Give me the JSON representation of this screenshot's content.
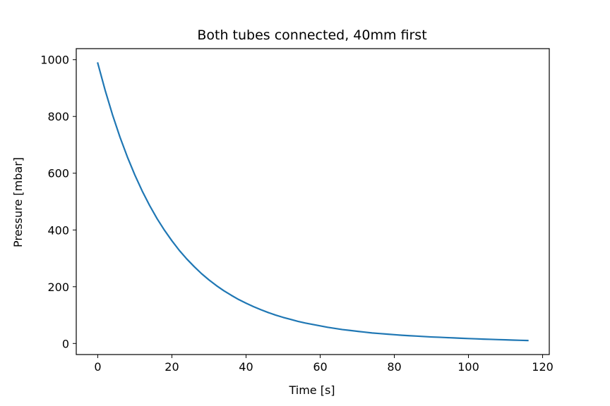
{
  "chart_data": {
    "type": "line",
    "title": "Both tubes connected, 40mm first",
    "xlabel": "Time [s]",
    "ylabel": "Pressure [mbar]",
    "xlim": [
      -5.8,
      121.8
    ],
    "ylim": [
      -39,
      1039
    ],
    "xticks": [
      0,
      20,
      40,
      60,
      80,
      100,
      120
    ],
    "yticks": [
      0,
      200,
      400,
      600,
      800,
      1000
    ],
    "grid": false,
    "legend": "none",
    "series": [
      {
        "color": "#1f77b4",
        "x": [
          0,
          2,
          4,
          6,
          8,
          10,
          12,
          14,
          16,
          18,
          20,
          22,
          24,
          26,
          28,
          30,
          32,
          34,
          36,
          38,
          40,
          42,
          44,
          46,
          48,
          50,
          52,
          54,
          56,
          58,
          60,
          62,
          64,
          66,
          68,
          70,
          72,
          74,
          76,
          78,
          80,
          82,
          84,
          86,
          88,
          90,
          92,
          94,
          96,
          98,
          100,
          102,
          104,
          106,
          108,
          110,
          112,
          114,
          116
        ],
        "y": [
          988,
          892,
          805,
          727,
          657,
          594,
          537,
          486,
          440,
          399,
          362,
          328,
          298,
          271,
          246,
          224,
          204,
          186,
          170,
          155,
          142,
          130,
          119,
          109,
          100,
          92,
          85,
          78,
          72,
          67,
          62,
          57,
          53,
          49,
          46,
          43,
          40,
          37,
          35,
          33,
          31,
          29,
          27.5,
          26,
          24.5,
          23,
          22,
          20.8,
          19.6,
          18.5,
          17.4,
          16.4,
          15.4,
          14.5,
          13.6,
          12.8,
          12,
          11.2,
          10.5
        ]
      }
    ]
  }
}
